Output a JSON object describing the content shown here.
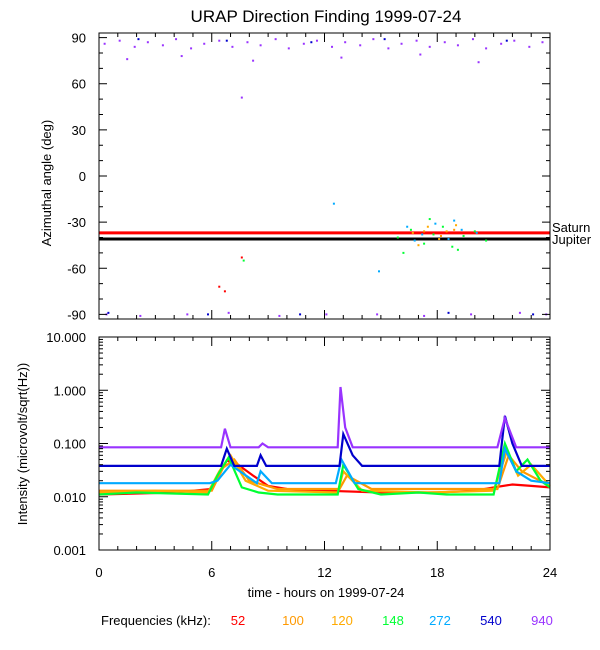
{
  "chart_data": [
    {
      "type": "scatter",
      "title": "URAP Direction Finding  1999-07-24",
      "xlabel": "",
      "ylabel": "Azimuthal angle (deg)",
      "xlim": [
        0,
        24
      ],
      "ylim": [
        -93,
        93
      ],
      "y_ticks": [
        "90",
        "60",
        "30",
        "0",
        "-30",
        "-60",
        "-90"
      ],
      "grid": false,
      "reference_lines": [
        {
          "name": "Saturn",
          "y": -37,
          "color": "#ff0000"
        },
        {
          "name": "Jupiter",
          "y": -41,
          "color": "#000000"
        }
      ],
      "series": [
        {
          "name": "940",
          "color": "#9933ff",
          "points": [
            [
              0.3,
              86
            ],
            [
              1.1,
              88
            ],
            [
              1.9,
              84
            ],
            [
              2.6,
              87
            ],
            [
              3.4,
              85
            ],
            [
              4.1,
              89
            ],
            [
              4.9,
              83
            ],
            [
              5.6,
              86
            ],
            [
              6.4,
              88
            ],
            [
              7.1,
              84
            ],
            [
              7.9,
              87
            ],
            [
              8.6,
              85
            ],
            [
              9.4,
              89
            ],
            [
              10.1,
              83
            ],
            [
              10.9,
              86
            ],
            [
              11.6,
              88
            ],
            [
              12.4,
              84
            ],
            [
              13.1,
              87
            ],
            [
              13.9,
              85
            ],
            [
              14.6,
              89
            ],
            [
              15.4,
              83
            ],
            [
              16.1,
              86
            ],
            [
              16.9,
              88
            ],
            [
              17.6,
              84
            ],
            [
              18.4,
              87
            ],
            [
              19.1,
              85
            ],
            [
              19.9,
              89
            ],
            [
              20.6,
              83
            ],
            [
              21.4,
              86
            ],
            [
              22.1,
              88
            ],
            [
              22.9,
              84
            ],
            [
              23.6,
              87
            ],
            [
              1.5,
              76
            ],
            [
              4.4,
              78
            ],
            [
              8.2,
              75
            ],
            [
              12.9,
              77
            ],
            [
              17.1,
              79
            ],
            [
              20.2,
              74
            ],
            [
              7.6,
              51
            ],
            [
              0.4,
              -90
            ],
            [
              2.2,
              -91
            ],
            [
              4.7,
              -90
            ],
            [
              6.9,
              -89
            ],
            [
              9.6,
              -91
            ],
            [
              12.1,
              -90
            ],
            [
              14.8,
              -90
            ],
            [
              17.3,
              -91
            ],
            [
              19.8,
              -90
            ],
            [
              22.4,
              -89
            ],
            [
              23.8,
              -90
            ]
          ]
        },
        {
          "name": "540",
          "color": "#0000cc",
          "points": [
            [
              2.1,
              89
            ],
            [
              6.8,
              88
            ],
            [
              11.3,
              87
            ],
            [
              15.2,
              89
            ],
            [
              21.7,
              88
            ],
            [
              0.5,
              -89
            ],
            [
              5.8,
              -90
            ],
            [
              10.7,
              -90
            ],
            [
              18.6,
              -89
            ],
            [
              23.1,
              -90
            ]
          ]
        },
        {
          "name": "272",
          "color": "#00aaff",
          "points": [
            [
              16.4,
              -33
            ],
            [
              17.2,
              -38
            ],
            [
              17.9,
              -31
            ],
            [
              18.6,
              -41
            ],
            [
              19.3,
              -35
            ],
            [
              20.1,
              -37
            ],
            [
              16.8,
              -42
            ],
            [
              18.9,
              -29
            ],
            [
              14.9,
              -62
            ],
            [
              12.5,
              -18
            ]
          ]
        },
        {
          "name": "148",
          "color": "#00ff33",
          "points": [
            [
              15.9,
              -40
            ],
            [
              16.6,
              -35
            ],
            [
              17.3,
              -44
            ],
            [
              17.8,
              -38
            ],
            [
              18.3,
              -33
            ],
            [
              18.8,
              -46
            ],
            [
              19.4,
              -39
            ],
            [
              20.0,
              -36
            ],
            [
              20.6,
              -42
            ],
            [
              16.2,
              -50
            ],
            [
              17.6,
              -28
            ],
            [
              19.1,
              -48
            ],
            [
              7.7,
              -55
            ]
          ]
        },
        {
          "name": "120",
          "color": "#ffaa00",
          "points": [
            [
              16.7,
              -37
            ],
            [
              17.5,
              -33
            ],
            [
              18.1,
              -41
            ],
            [
              18.5,
              -36
            ],
            [
              19.0,
              -32
            ],
            [
              17.0,
              -45
            ]
          ]
        },
        {
          "name": "100",
          "color": "#ff9900",
          "points": [
            [
              17.3,
              -36
            ],
            [
              18.2,
              -39
            ],
            [
              18.9,
              -35
            ]
          ]
        },
        {
          "name": "52",
          "color": "#ff0000",
          "points": [
            [
              6.4,
              -72
            ],
            [
              6.7,
              -75
            ],
            [
              7.6,
              -53
            ]
          ]
        }
      ]
    },
    {
      "type": "line",
      "title": "",
      "xlabel": "time - hours on 1999-07-24",
      "ylabel": "Intensity (microvolt/sqrt(Hz))",
      "xlim": [
        0,
        24
      ],
      "ylim": [
        0.001,
        10
      ],
      "y_scale": "log",
      "x_ticks": [
        "0",
        "6",
        "12",
        "18",
        "24"
      ],
      "y_ticks": [
        "10.000",
        "1.000",
        "0.100",
        "0.010",
        "0.001"
      ],
      "grid": false,
      "series": [
        {
          "name": "940",
          "color": "#9933ff",
          "x": [
            0,
            6.5,
            6.7,
            7.0,
            8.5,
            8.7,
            9.0,
            12.7,
            12.85,
            13.1,
            13.5,
            21.2,
            21.6,
            22.2,
            24
          ],
          "y": [
            0.085,
            0.085,
            0.19,
            0.085,
            0.085,
            0.1,
            0.085,
            0.085,
            1.15,
            0.2,
            0.085,
            0.085,
            0.3,
            0.085,
            0.085
          ]
        },
        {
          "name": "540",
          "color": "#0000cc",
          "x": [
            0,
            6.5,
            6.8,
            7.2,
            8.4,
            8.6,
            8.9,
            12.8,
            13.0,
            13.5,
            14.0,
            21.3,
            21.6,
            22.0,
            22.5,
            24
          ],
          "y": [
            0.038,
            0.038,
            0.08,
            0.038,
            0.038,
            0.06,
            0.038,
            0.038,
            0.15,
            0.06,
            0.038,
            0.038,
            0.33,
            0.1,
            0.038,
            0.038
          ]
        },
        {
          "name": "272",
          "color": "#00aaff",
          "x": [
            0,
            5.9,
            6.3,
            7.0,
            8.4,
            8.6,
            9.2,
            12.6,
            12.9,
            13.6,
            21.3,
            21.6,
            22.2,
            23.0,
            24
          ],
          "y": [
            0.018,
            0.018,
            0.02,
            0.04,
            0.018,
            0.03,
            0.018,
            0.018,
            0.05,
            0.018,
            0.018,
            0.08,
            0.03,
            0.02,
            0.018
          ]
        },
        {
          "name": "148",
          "color": "#00ff33",
          "x": [
            0,
            2.0,
            5.8,
            6.3,
            6.9,
            7.6,
            8.5,
            9.5,
            11.0,
            12.7,
            13.0,
            13.8,
            15.0,
            17.0,
            18.5,
            21.0,
            21.6,
            22.2,
            22.8,
            23.5,
            24
          ],
          "y": [
            0.011,
            0.012,
            0.011,
            0.025,
            0.055,
            0.015,
            0.012,
            0.011,
            0.011,
            0.011,
            0.04,
            0.014,
            0.011,
            0.012,
            0.011,
            0.011,
            0.1,
            0.03,
            0.05,
            0.02,
            0.015
          ]
        },
        {
          "name": "120",
          "color": "#ffaa00",
          "x": [
            0,
            3.0,
            5.8,
            6.4,
            7.0,
            7.8,
            9.0,
            12.7,
            13.0,
            14.0,
            17.5,
            21.0,
            21.7,
            22.3,
            23.0,
            24
          ],
          "y": [
            0.012,
            0.013,
            0.012,
            0.03,
            0.06,
            0.02,
            0.013,
            0.012,
            0.03,
            0.013,
            0.012,
            0.013,
            0.07,
            0.025,
            0.04,
            0.016
          ]
        },
        {
          "name": "100",
          "color": "#ff9900",
          "x": [
            0,
            6.0,
            6.6,
            7.2,
            8.0,
            9.5,
            12.8,
            13.2,
            14.5,
            21.2,
            21.8,
            22.5,
            24
          ],
          "y": [
            0.013,
            0.013,
            0.035,
            0.05,
            0.02,
            0.014,
            0.014,
            0.025,
            0.014,
            0.014,
            0.06,
            0.03,
            0.016
          ]
        },
        {
          "name": "52",
          "color": "#ff0000",
          "x": [
            0,
            4.0,
            6.0,
            6.8,
            7.4,
            8.2,
            9.0,
            10.0,
            12.0,
            15.0,
            18.0,
            20.0,
            21.0,
            22.0,
            23.0,
            24
          ],
          "y": [
            0.011,
            0.012,
            0.014,
            0.048,
            0.04,
            0.025,
            0.016,
            0.014,
            0.013,
            0.012,
            0.012,
            0.013,
            0.015,
            0.017,
            0.016,
            0.015
          ]
        }
      ]
    }
  ],
  "legend": {
    "label": "Frequencies (kHz):",
    "items": [
      {
        "text": "52",
        "color": "#ff0000"
      },
      {
        "text": "100",
        "color": "#ff9900"
      },
      {
        "text": "120",
        "color": "#ffaa00"
      },
      {
        "text": "148",
        "color": "#00ff33"
      },
      {
        "text": "272",
        "color": "#00aaff"
      },
      {
        "text": "540",
        "color": "#0000cc"
      },
      {
        "text": "940",
        "color": "#9933ff"
      }
    ]
  }
}
